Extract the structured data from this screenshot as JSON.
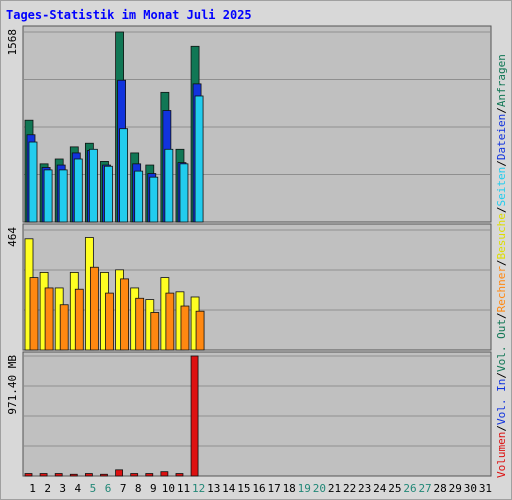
{
  "chart_data": {
    "title": "Tages-Statistik im Monat Juli 2025",
    "type": "bar",
    "days": [
      "1",
      "2",
      "3",
      "4",
      "5",
      "6",
      "7",
      "8",
      "9",
      "10",
      "11",
      "12",
      "13",
      "14",
      "15",
      "16",
      "17",
      "18",
      "19",
      "20",
      "21",
      "22",
      "23",
      "24",
      "25",
      "26",
      "27",
      "28",
      "29",
      "30",
      "31"
    ],
    "weekend_days": [
      5,
      6,
      12,
      19,
      20,
      26,
      27
    ],
    "colors": {
      "title": "#0000ff",
      "weekday_label": "#000000",
      "weekend_label": "#228877",
      "background": "#c0c0c0",
      "frame": "#d8d8d8",
      "grid": "#8f8f8f"
    },
    "panels": [
      {
        "id": "hits",
        "ymax_label": "1568",
        "ymax": 1568,
        "series": [
          {
            "name": "Anfragen",
            "color": "#117755",
            "values": [
              840,
              480,
              520,
              620,
              650,
              500,
              1568,
              570,
              470,
              1070,
              600,
              1450,
              0,
              0,
              0,
              0,
              0,
              0,
              0,
              0,
              0,
              0,
              0,
              0,
              0,
              0,
              0,
              0,
              0,
              0,
              0
            ]
          },
          {
            "name": "Dateien",
            "color": "#1133dd",
            "values": [
              720,
              450,
              470,
              570,
              590,
              470,
              1170,
              480,
              400,
              920,
              490,
              1140,
              0,
              0,
              0,
              0,
              0,
              0,
              0,
              0,
              0,
              0,
              0,
              0,
              0,
              0,
              0,
              0,
              0,
              0,
              0
            ]
          },
          {
            "name": "Seiten",
            "color": "#22ccee",
            "values": [
              660,
              430,
              430,
              520,
              600,
              460,
              770,
              420,
              370,
              600,
              480,
              1040,
              0,
              0,
              0,
              0,
              0,
              0,
              0,
              0,
              0,
              0,
              0,
              0,
              0,
              0,
              0,
              0,
              0,
              0,
              0
            ]
          }
        ]
      },
      {
        "id": "visits",
        "ymax_label": "464",
        "ymax": 464,
        "series": [
          {
            "name": "Besuche",
            "color": "#ffff22",
            "values": [
              430,
              300,
              240,
              300,
              435,
              300,
              310,
              240,
              195,
              280,
              225,
              205,
              0,
              0,
              0,
              0,
              0,
              0,
              0,
              0,
              0,
              0,
              0,
              0,
              0,
              0,
              0,
              0,
              0,
              0,
              0
            ]
          },
          {
            "name": "Rechner",
            "color": "#ff8811",
            "values": [
              280,
              240,
              175,
              235,
              320,
              220,
              275,
              200,
              145,
              220,
              170,
              150,
              0,
              0,
              0,
              0,
              0,
              0,
              0,
              0,
              0,
              0,
              0,
              0,
              0,
              0,
              0,
              0,
              0,
              0,
              0
            ]
          }
        ]
      },
      {
        "id": "volume",
        "ymax_label": "971.40 MB",
        "ymax": 971.4,
        "unit": "MB",
        "series": [
          {
            "name": "Volumen",
            "color": "#dd1111",
            "values": [
              20,
              20,
              20,
              14,
              20,
              14,
              50,
              20,
              20,
              35,
              20,
              971.4,
              0,
              0,
              0,
              0,
              0,
              0,
              0,
              0,
              0,
              0,
              0,
              0,
              0,
              0,
              0,
              0,
              0,
              0,
              0
            ]
          }
        ]
      }
    ],
    "right_axis_labels": [
      {
        "text": "Volumen",
        "color": "#dd1111"
      },
      {
        "text": "Vol. In",
        "color": "#1133dd"
      },
      {
        "text": "Vol. Out",
        "color": "#117755"
      },
      {
        "text": "Rechner",
        "color": "#ff8811"
      },
      {
        "text": "Besuche",
        "color": "#dddd00"
      },
      {
        "text": "Seiten",
        "color": "#22ccee"
      },
      {
        "text": "Dateien",
        "color": "#1133dd"
      },
      {
        "text": "Anfragen",
        "color": "#117755"
      }
    ],
    "label_separator": "/",
    "separator_color": "#000000"
  }
}
